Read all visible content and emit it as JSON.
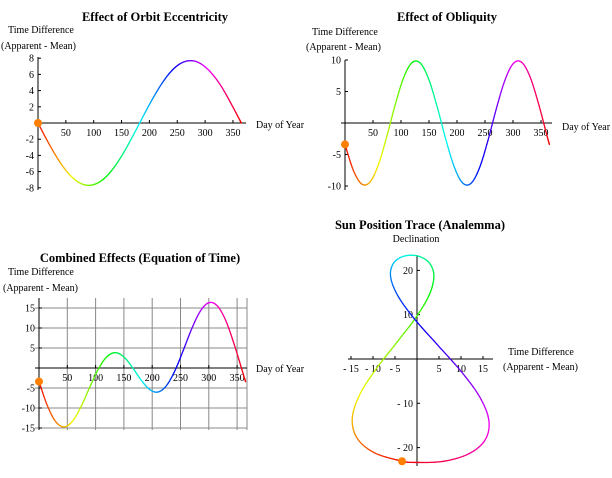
{
  "chart_data": [
    {
      "type": "line",
      "title": "Effect of Orbit Eccentricity",
      "xlabel": "Day of Year",
      "ylabel": [
        "Time Difference",
        "(Apparent - Mean)"
      ],
      "xticks": [
        50,
        100,
        150,
        200,
        250,
        300,
        350
      ],
      "yticks": [
        -8,
        -6,
        -4,
        -2,
        2,
        4,
        6,
        8
      ],
      "xlim": [
        0,
        365
      ],
      "ylim": [
        -8,
        8
      ],
      "grid": false,
      "color_scheme": "rainbow hue by day of year",
      "marker": {
        "x": 0,
        "y": 0,
        "color": "#ff8000"
      },
      "x": [
        0,
        15,
        30,
        45,
        60,
        75,
        90,
        105,
        120,
        135,
        150,
        165,
        180,
        195,
        210,
        225,
        240,
        255,
        270,
        285,
        300,
        315,
        330,
        345,
        360,
        365
      ],
      "y": [
        0,
        -1.97,
        -3.8,
        -5.39,
        -6.61,
        -7.4,
        -7.7,
        -7.48,
        -6.78,
        -5.62,
        -4.09,
        -2.28,
        -0.33,
        1.64,
        3.5,
        5.14,
        6.45,
        7.31,
        7.68,
        7.56,
        6.93,
        5.87,
        4.42,
        2.6,
        0.66,
        0
      ]
    },
    {
      "type": "line",
      "title": "Effect of Obliquity",
      "xlabel": "Day of Year",
      "ylabel": [
        "Time Difference",
        "(Apparent - Mean)"
      ],
      "xticks": [
        50,
        100,
        150,
        200,
        250,
        300,
        350
      ],
      "yticks": [
        -10,
        -5,
        5,
        10
      ],
      "xlim": [
        0,
        365
      ],
      "ylim": [
        -10,
        10
      ],
      "grid": false,
      "color_scheme": "rainbow hue by day of year",
      "marker": {
        "x": 0,
        "y": -3.4,
        "color": "#ff8000"
      },
      "x": [
        0,
        15,
        30,
        45,
        60,
        75,
        90,
        105,
        120,
        135,
        150,
        165,
        180,
        195,
        210,
        225,
        240,
        255,
        270,
        285,
        300,
        315,
        330,
        345,
        360,
        365
      ],
      "y": [
        -3.4,
        -7.54,
        -9.7,
        -9.33,
        -6.53,
        -2.02,
        3.01,
        7.26,
        9.61,
        9.46,
        6.85,
        2.44,
        -2.6,
        -6.95,
        -9.51,
        -9.58,
        -7.17,
        -2.86,
        2.19,
        6.65,
        9.39,
        9.67,
        7.43,
        3.25,
        -1.78,
        -3.41
      ]
    },
    {
      "type": "line",
      "title": "Combined Effects (Equation of Time)",
      "xlabel": "Day of Year",
      "ylabel": [
        "Time Difference",
        "(Apparent - Mean)"
      ],
      "xticks": [
        50,
        100,
        150,
        200,
        250,
        300,
        350
      ],
      "yticks": [
        -15,
        -10,
        -5,
        5,
        10,
        15
      ],
      "xlim": [
        0,
        365
      ],
      "ylim": [
        -15,
        16.5
      ],
      "grid": true,
      "color_scheme": "rainbow hue by day of year",
      "marker": {
        "x": 0,
        "y": -3.4,
        "color": "#ff8000"
      },
      "x": [
        0,
        15,
        30,
        45,
        60,
        75,
        90,
        105,
        120,
        135,
        150,
        165,
        180,
        195,
        210,
        225,
        240,
        255,
        270,
        285,
        300,
        315,
        330,
        345,
        360,
        365
      ],
      "y": [
        -3.4,
        -9.51,
        -13.5,
        -14.72,
        -13.14,
        -9.42,
        -4.69,
        -0.22,
        2.83,
        3.84,
        2.76,
        0.16,
        -2.93,
        -5.31,
        -6.01,
        -4.44,
        -0.72,
        4.45,
        9.87,
        14.21,
        16.32,
        15.54,
        11.85,
        5.85,
        -1.12,
        -3.41
      ]
    },
    {
      "type": "line",
      "title": "Sun Position Trace (Analemma)",
      "xlabel": [
        "Time Difference",
        "(Apparent - Mean)"
      ],
      "ylabel": "Declination",
      "xticks": [
        -15,
        -10,
        -5,
        5,
        10,
        15
      ],
      "xtick_labels": [
        "- 15",
        "- 10",
        "- 5",
        "5",
        "10",
        "15"
      ],
      "yticks": [
        -20,
        -10,
        10,
        20
      ],
      "ytick_labels": [
        "- 20",
        "- 10",
        "10",
        "20"
      ],
      "xlim": [
        -15,
        16.5
      ],
      "ylim": [
        -23.4,
        23.4
      ],
      "grid": false,
      "color_scheme": "rainbow hue by day of year",
      "marker": {
        "x": -3.4,
        "y": -23.08,
        "color": "#ff8000"
      },
      "day": [
        0,
        15,
        30,
        45,
        60,
        75,
        90,
        105,
        120,
        135,
        150,
        165,
        180,
        195,
        210,
        225,
        240,
        255,
        270,
        285,
        300,
        315,
        330,
        345,
        360,
        365
      ],
      "x": [
        -3.4,
        -9.51,
        -13.5,
        -14.72,
        -13.14,
        -9.42,
        -4.69,
        -0.22,
        2.83,
        3.84,
        2.76,
        0.16,
        -2.93,
        -5.31,
        -6.01,
        -4.44,
        -0.72,
        4.45,
        9.87,
        14.21,
        16.32,
        15.54,
        11.85,
        5.85,
        -1.12,
        -3.41
      ],
      "y": [
        -23.08,
        -21.26,
        -18.04,
        -13.61,
        -8.29,
        -2.42,
        3.62,
        9.41,
        14.58,
        18.78,
        21.74,
        23.25,
        23.23,
        21.67,
        18.66,
        14.42,
        9.22,
        3.42,
        -2.61,
        -8.49,
        -13.78,
        -18.17,
        -21.36,
        -23.12,
        -23.34,
        -23.08
      ]
    }
  ]
}
